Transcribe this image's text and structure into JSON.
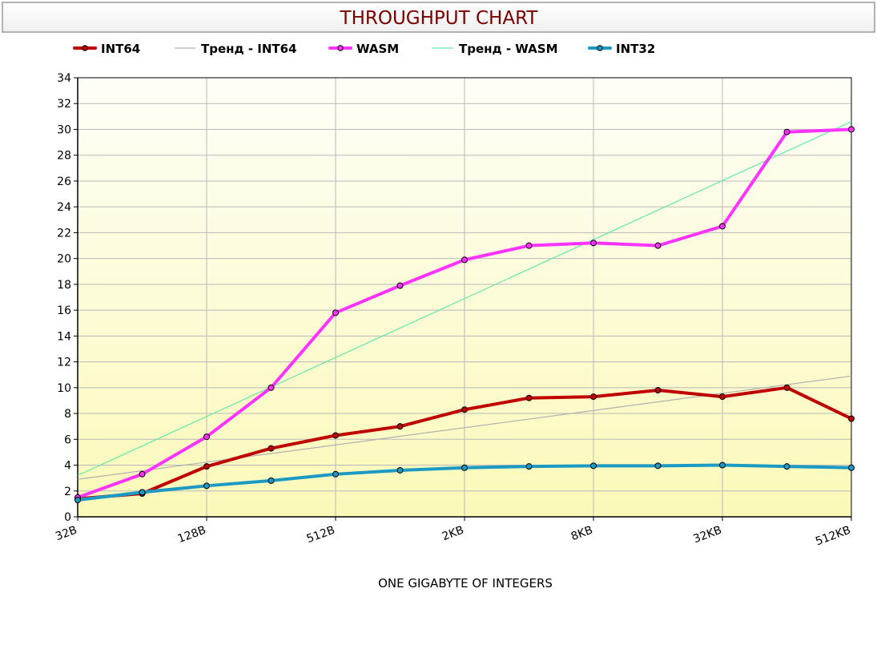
{
  "chart_data": {
    "type": "line",
    "title": "THROUGHPUT CHART",
    "xlabel": "ONE GIGABYTE OF INTEGERS",
    "ylabel": "",
    "x_tick_labels": [
      "32B",
      "128B",
      "512B",
      "2KB",
      "8KB",
      "32KB",
      "512KB"
    ],
    "ylim": [
      0,
      34
    ],
    "y_ticks": [
      0,
      2,
      4,
      6,
      8,
      10,
      12,
      14,
      16,
      18,
      20,
      22,
      24,
      26,
      28,
      30,
      32,
      34
    ],
    "grid": true,
    "legend_position": "top",
    "series": [
      {
        "name": "INT64",
        "kind": "data",
        "color": "#c00000",
        "markers": true,
        "values": [
          1.4,
          1.8,
          3.9,
          5.3,
          6.3,
          7.0,
          8.3,
          9.2,
          9.3,
          9.8,
          9.3,
          10.0,
          7.6
        ]
      },
      {
        "name": "Тренд - INT64",
        "kind": "trend",
        "color": "#b0b0b0",
        "markers": false,
        "values": [
          2.9,
          10.9
        ]
      },
      {
        "name": "WASM",
        "kind": "data",
        "color": "#ff33ff",
        "markers": true,
        "values": [
          1.5,
          3.3,
          6.2,
          10.0,
          15.8,
          17.9,
          19.9,
          21.0,
          21.2,
          21.0,
          22.5,
          29.8,
          30.0
        ]
      },
      {
        "name": "Тренд - WASM",
        "kind": "trend",
        "color": "#66e8a8",
        "markers": false,
        "values": [
          3.2,
          30.6
        ]
      },
      {
        "name": "INT32",
        "kind": "data",
        "color": "#1b9ac4",
        "markers": true,
        "values": [
          1.3,
          1.9,
          2.4,
          2.8,
          3.3,
          3.6,
          3.8,
          3.9,
          3.95,
          3.95,
          4.0,
          3.9,
          3.8
        ]
      }
    ]
  }
}
